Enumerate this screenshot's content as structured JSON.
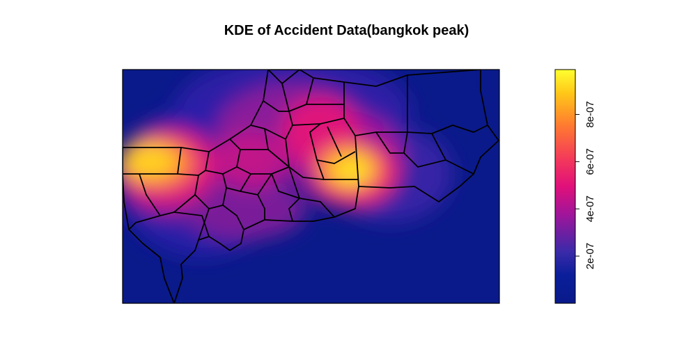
{
  "title": "KDE of Accident Data(bangkok peak)",
  "legend": {
    "ticks": [
      {
        "label": "2e-07",
        "value": 2e-07
      },
      {
        "label": "4e-07",
        "value": 4e-07
      },
      {
        "label": "6e-07",
        "value": 6e-07
      },
      {
        "label": "8e-07",
        "value": 8e-07
      }
    ],
    "range": [
      0,
      9.9e-07
    ],
    "colors": [
      "#0a1a8a",
      "#1230a8",
      "#7a1a9c",
      "#d8127c",
      "#f0425a",
      "#ff8a2a",
      "#ffcc18",
      "#ffff30"
    ]
  },
  "colors": {
    "background": "#0a1a8a",
    "district_border": "#000000"
  }
}
